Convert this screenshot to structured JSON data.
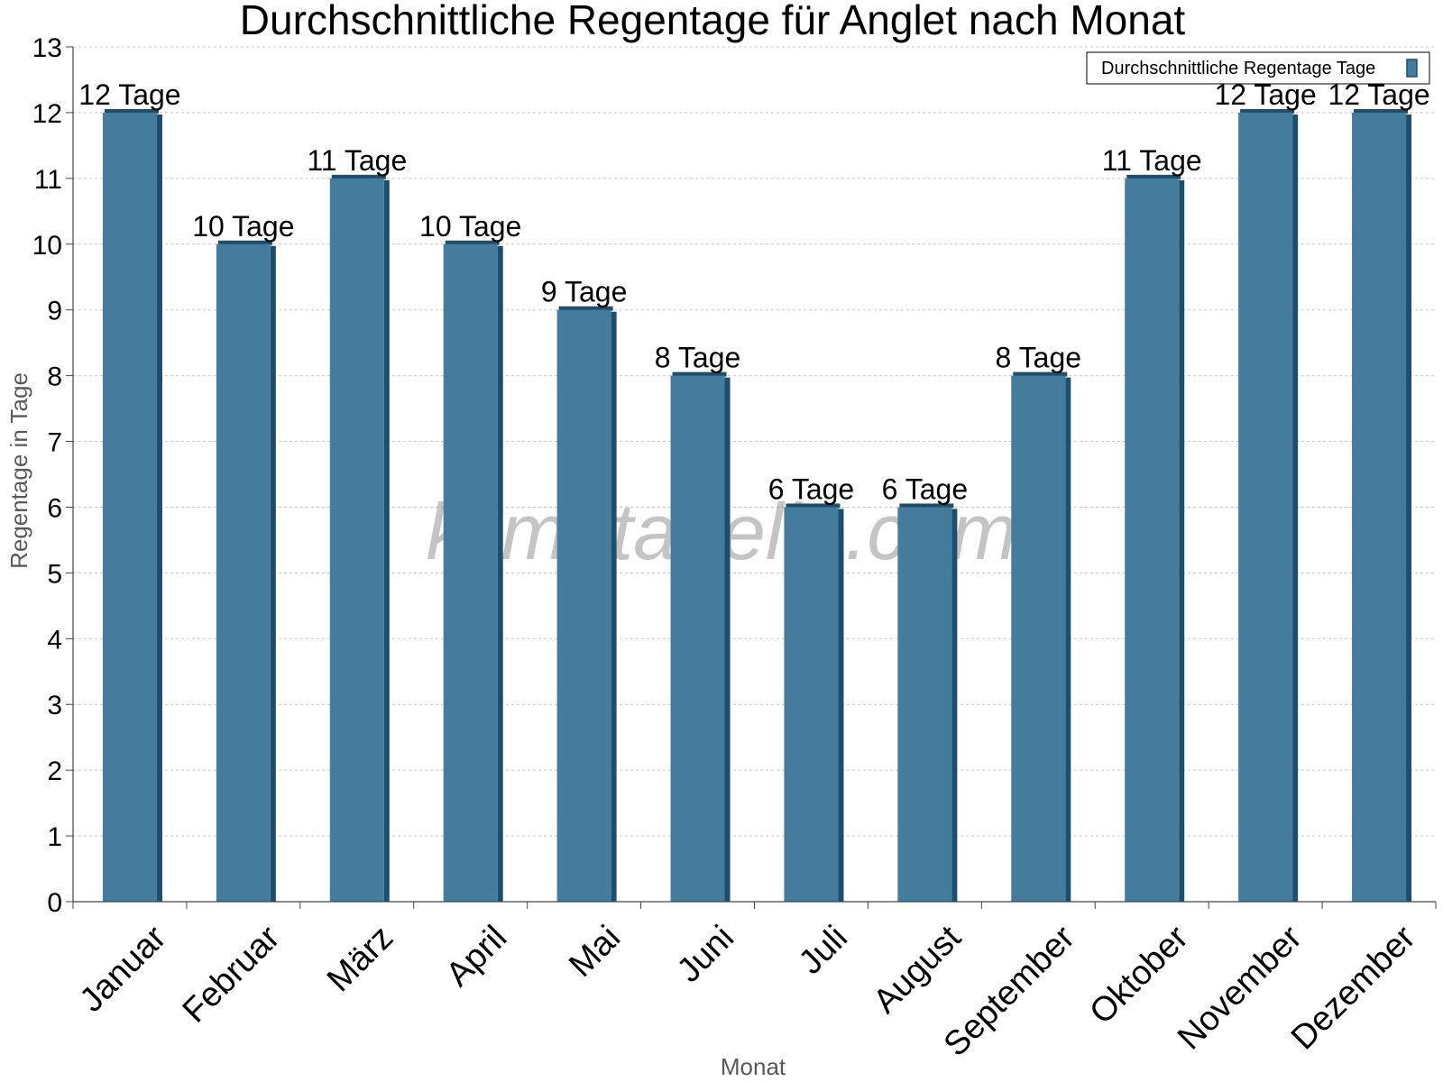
{
  "chart_data": {
    "type": "bar",
    "title": "Durchschnittliche Regentage für Anglet nach Monat",
    "xlabel": "Monat",
    "ylabel": "Regentage in Tage",
    "categories": [
      "Januar",
      "Februar",
      "März",
      "April",
      "Mai",
      "Juni",
      "Juli",
      "August",
      "September",
      "Oktober",
      "November",
      "Dezember"
    ],
    "series": [
      {
        "name": "Durchschnittliche Regentage Tage",
        "values": [
          12,
          10,
          11,
          10,
          9,
          8,
          6,
          6,
          8,
          11,
          12,
          12
        ],
        "data_labels": [
          "12 Tage",
          "10 Tage",
          "11 Tage",
          "10 Tage",
          "9 Tage",
          "8 Tage",
          "6 Tage",
          "6 Tage",
          "8 Tage",
          "11 Tage",
          "12 Tage",
          "12 Tage"
        ]
      }
    ],
    "ylim": [
      0,
      13
    ],
    "yticks": [
      0,
      1,
      2,
      3,
      4,
      5,
      6,
      7,
      8,
      9,
      10,
      11,
      12,
      13
    ],
    "grid": true,
    "legend_position": "top-right",
    "colors": {
      "bar": "#457b9d",
      "bar_side": "#1d4e6e",
      "grid": "#c8c8c8",
      "axis": "#444444"
    }
  },
  "watermark": "klimatabelle.com"
}
